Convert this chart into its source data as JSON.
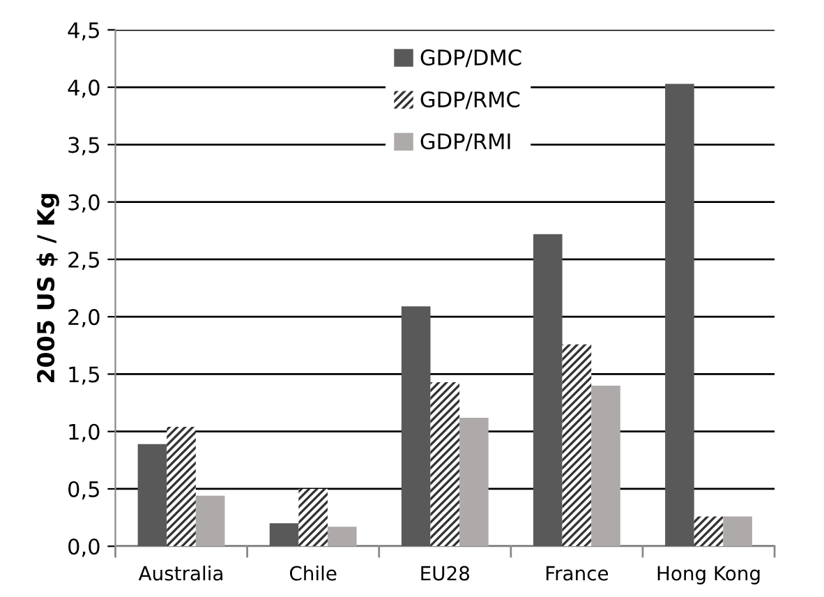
{
  "chart_data": {
    "type": "bar",
    "ylabel": "2005 US $ / Kg",
    "categories": [
      "Australia",
      "Chile",
      "EU28",
      "France",
      "Hong Kong"
    ],
    "series": [
      {
        "name": "GDP/DMC",
        "color": "#595959",
        "values": [
          0.89,
          0.2,
          2.09,
          2.72,
          4.03
        ]
      },
      {
        "name": "GDP/RMC",
        "color": "#333333",
        "values": [
          1.04,
          0.5,
          1.43,
          1.76,
          0.26
        ]
      },
      {
        "name": "GDP/RMI",
        "color": "#aeaaaa",
        "values": [
          0.44,
          0.17,
          1.12,
          1.4,
          0.26
        ]
      }
    ],
    "ylim": [
      0,
      4.5
    ],
    "yticks": [
      {
        "value": 0,
        "label": "0,0"
      },
      {
        "value": 0.5,
        "label": "0,5"
      },
      {
        "value": 1,
        "label": "1,0"
      },
      {
        "value": 1.5,
        "label": "1,5"
      },
      {
        "value": 2,
        "label": "2,0"
      },
      {
        "value": 2.5,
        "label": "2,5"
      },
      {
        "value": 3,
        "label": "3,0"
      },
      {
        "value": 3.5,
        "label": "3,5"
      },
      {
        "value": 4,
        "label": "4,0"
      },
      {
        "value": 4.5,
        "label": "4,5"
      }
    ],
    "grid": "y",
    "legend": "top"
  }
}
